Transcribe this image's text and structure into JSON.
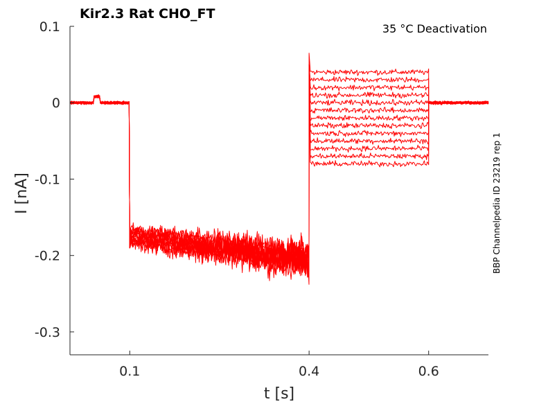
{
  "chart_data": {
    "type": "line",
    "title": "Kir2.3  Rat  CHO_FT",
    "annotation": "35 °C  Deactivation",
    "side_label": "BBP Channelpedia ID 23219 rep 1",
    "xlabel": "t [s]",
    "ylabel": "I [nA]",
    "xlim": [
      0.0,
      0.7
    ],
    "ylim": [
      -0.33,
      0.1
    ],
    "xticks": [
      0.1,
      0.4,
      0.6
    ],
    "xtick_labels": [
      "0.1",
      "0.4",
      "0.6"
    ],
    "yticks": [
      0.1,
      0,
      -0.1,
      -0.2,
      -0.3
    ],
    "ytick_labels": [
      "0.1",
      "0",
      "-0.1",
      "-0.2",
      "-0.3"
    ],
    "grid": false,
    "series_color": "#ff0000",
    "segments": {
      "baseline": {
        "t_start": 0.0,
        "t_end": 0.1,
        "current": 0.0
      },
      "hyperpolarizing": {
        "t_start": 0.1,
        "t_end": 0.4,
        "current_start": -0.175,
        "current_end": -0.205
      },
      "test_steps": {
        "t_start": 0.4,
        "t_end": 0.6
      },
      "tail": {
        "t_start": 0.6,
        "t_end": 0.7,
        "current": 0.0
      }
    },
    "series": [
      {
        "test_current": 0.04
      },
      {
        "test_current": 0.03
      },
      {
        "test_current": 0.02
      },
      {
        "test_current": 0.01
      },
      {
        "test_current": 0.0
      },
      {
        "test_current": -0.01
      },
      {
        "test_current": -0.02
      },
      {
        "test_current": -0.03
      },
      {
        "test_current": -0.04
      },
      {
        "test_current": -0.05
      },
      {
        "test_current": -0.06
      },
      {
        "test_current": -0.07
      },
      {
        "test_current": -0.08
      }
    ]
  }
}
